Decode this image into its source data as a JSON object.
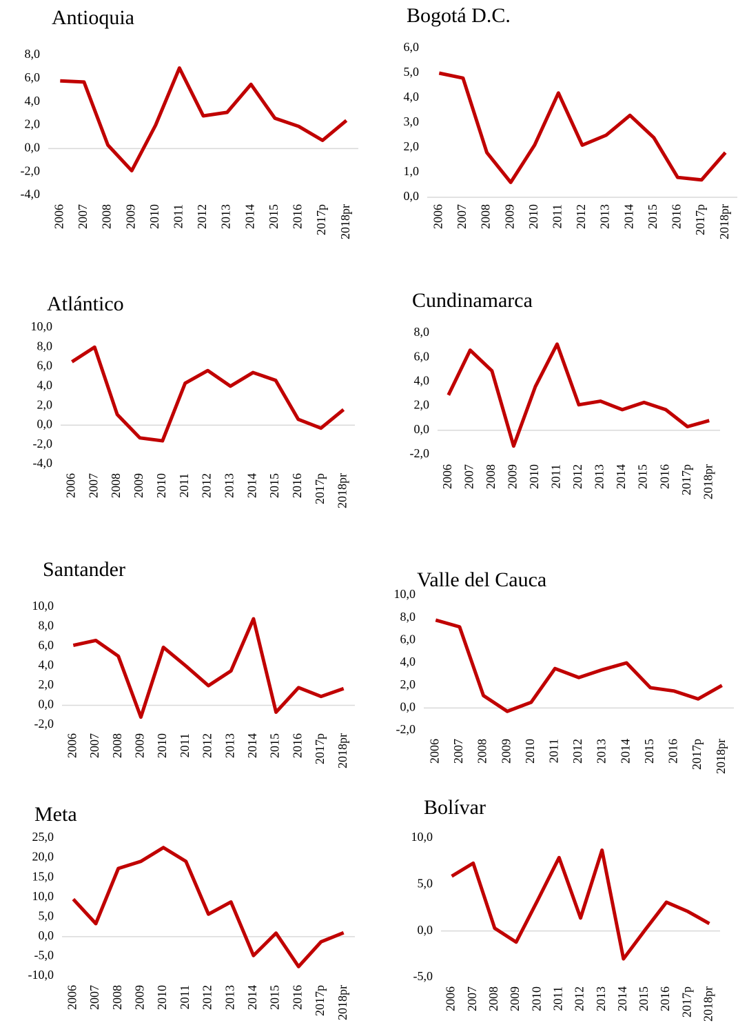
{
  "chart_data": [
    {
      "type": "line",
      "title": "Antioquia",
      "categories": [
        "2006",
        "2007",
        "2008",
        "2009",
        "2010",
        "2011",
        "2012",
        "2013",
        "2014",
        "2015",
        "2016",
        "2017p",
        "2018pr"
      ],
      "series": [
        {
          "color": "#c00000",
          "values": [
            5.8,
            5.7,
            0.3,
            -1.9,
            2.0,
            6.9,
            2.8,
            3.1,
            5.5,
            2.6,
            1.9,
            0.7,
            2.4
          ]
        }
      ],
      "ylim": [
        -4,
        8
      ],
      "yticks": [
        {
          "value": -4,
          "label": "-4,0"
        },
        {
          "value": -2,
          "label": "-2,0"
        },
        {
          "value": 0,
          "label": "0,0"
        },
        {
          "value": 2,
          "label": "2,0"
        },
        {
          "value": 4,
          "label": "4,0"
        },
        {
          "value": 6,
          "label": "6,0"
        },
        {
          "value": 8,
          "label": "8,0"
        }
      ]
    },
    {
      "type": "line",
      "title": "Bogotá D.C.",
      "categories": [
        "2006",
        "2007",
        "2008",
        "2009",
        "2010",
        "2011",
        "2012",
        "2013",
        "2014",
        "2015",
        "2016",
        "2017p",
        "2018pr"
      ],
      "series": [
        {
          "color": "#c00000",
          "values": [
            5.0,
            4.8,
            1.8,
            0.6,
            2.1,
            4.2,
            2.1,
            2.5,
            3.3,
            2.4,
            0.8,
            0.7,
            1.8
          ]
        }
      ],
      "ylim": [
        0,
        6
      ],
      "yticks": [
        {
          "value": 0,
          "label": "0,0"
        },
        {
          "value": 1,
          "label": "1,0"
        },
        {
          "value": 2,
          "label": "2,0"
        },
        {
          "value": 3,
          "label": "3,0"
        },
        {
          "value": 4,
          "label": "4,0"
        },
        {
          "value": 5,
          "label": "5,0"
        },
        {
          "value": 6,
          "label": "6,0"
        }
      ]
    },
    {
      "type": "line",
      "title": "Atlántico",
      "categories": [
        "2006",
        "2007",
        "2008",
        "2009",
        "2010",
        "2011",
        "2012",
        "2013",
        "2014",
        "2015",
        "2016",
        "2017p",
        "2018pr"
      ],
      "series": [
        {
          "color": "#c00000",
          "values": [
            6.5,
            8.0,
            1.1,
            -1.3,
            -1.6,
            4.3,
            5.6,
            4.0,
            5.4,
            4.6,
            0.6,
            -0.3,
            1.6
          ]
        }
      ],
      "ylim": [
        -4,
        10
      ],
      "yticks": [
        {
          "value": -4,
          "label": "-4,0"
        },
        {
          "value": -2,
          "label": "-2,0"
        },
        {
          "value": 0,
          "label": "0,0"
        },
        {
          "value": 2,
          "label": "2,0"
        },
        {
          "value": 4,
          "label": "4,0"
        },
        {
          "value": 6,
          "label": "6,0"
        },
        {
          "value": 8,
          "label": "8,0"
        },
        {
          "value": 10,
          "label": "10,0"
        }
      ]
    },
    {
      "type": "line",
      "title": "Cundinamarca",
      "categories": [
        "2006",
        "2007",
        "2008",
        "2009",
        "2010",
        "2011",
        "2012",
        "2013",
        "2014",
        "2015",
        "2016",
        "2017p",
        "2018pr"
      ],
      "series": [
        {
          "color": "#c00000",
          "values": [
            2.9,
            6.6,
            4.9,
            -1.3,
            3.6,
            7.1,
            2.1,
            2.4,
            1.7,
            2.3,
            1.7,
            0.3,
            0.8
          ]
        }
      ],
      "ylim": [
        -2,
        8
      ],
      "yticks": [
        {
          "value": -2,
          "label": "-2,0"
        },
        {
          "value": 0,
          "label": "0,0"
        },
        {
          "value": 2,
          "label": "2,0"
        },
        {
          "value": 4,
          "label": "4,0"
        },
        {
          "value": 6,
          "label": "6,0"
        },
        {
          "value": 8,
          "label": "8,0"
        }
      ]
    },
    {
      "type": "line",
      "title": "Santander",
      "categories": [
        "2006",
        "2007",
        "2008",
        "2009",
        "2010",
        "2011",
        "2012",
        "2013",
        "2014",
        "2015",
        "2016",
        "2017p",
        "2018pr"
      ],
      "series": [
        {
          "color": "#c00000",
          "values": [
            6.1,
            6.6,
            5.0,
            -1.2,
            5.9,
            4.0,
            2.0,
            3.5,
            8.8,
            -0.7,
            1.8,
            0.9,
            1.7
          ]
        }
      ],
      "ylim": [
        -2,
        10
      ],
      "yticks": [
        {
          "value": -2,
          "label": "-2,0"
        },
        {
          "value": 0,
          "label": "0,0"
        },
        {
          "value": 2,
          "label": "2,0"
        },
        {
          "value": 4,
          "label": "4,0"
        },
        {
          "value": 6,
          "label": "6,0"
        },
        {
          "value": 8,
          "label": "8,0"
        },
        {
          "value": 10,
          "label": "10,0"
        }
      ]
    },
    {
      "type": "line",
      "title": "Valle del Cauca",
      "categories": [
        "2006",
        "2007",
        "2008",
        "2009",
        "2010",
        "2011",
        "2012",
        "2013",
        "2014",
        "2015",
        "2016",
        "2017p",
        "2018pr"
      ],
      "series": [
        {
          "color": "#c00000",
          "values": [
            7.8,
            7.2,
            1.1,
            -0.3,
            0.5,
            3.5,
            2.7,
            3.4,
            4.0,
            1.8,
            1.5,
            0.8,
            2.0
          ]
        }
      ],
      "ylim": [
        -2,
        10
      ],
      "yticks": [
        {
          "value": -2,
          "label": "-2,0"
        },
        {
          "value": 0,
          "label": "0,0"
        },
        {
          "value": 2,
          "label": "2,0"
        },
        {
          "value": 4,
          "label": "4,0"
        },
        {
          "value": 6,
          "label": "6,0"
        },
        {
          "value": 8,
          "label": "8,0"
        },
        {
          "value": 10,
          "label": "10,0"
        }
      ]
    },
    {
      "type": "line",
      "title": "Meta",
      "categories": [
        "2006",
        "2007",
        "2008",
        "2009",
        "2010",
        "2011",
        "2012",
        "2013",
        "2014",
        "2015",
        "2016",
        "2017p",
        "2018pr"
      ],
      "series": [
        {
          "color": "#c00000",
          "values": [
            9.5,
            3.3,
            17.3,
            19.1,
            22.6,
            19.1,
            5.7,
            8.8,
            -4.8,
            0.9,
            -7.6,
            -1.3,
            1.0
          ]
        }
      ],
      "ylim": [
        -10,
        25
      ],
      "yticks": [
        {
          "value": -10,
          "label": "-10,0"
        },
        {
          "value": -5,
          "label": "-5,0"
        },
        {
          "value": 0,
          "label": "0,0"
        },
        {
          "value": 5,
          "label": "5,0"
        },
        {
          "value": 10,
          "label": "10,0"
        },
        {
          "value": 15,
          "label": "15,0"
        },
        {
          "value": 20,
          "label": "20,0"
        },
        {
          "value": 25,
          "label": "25,0"
        }
      ]
    },
    {
      "type": "line",
      "title": "Bolívar",
      "categories": [
        "2006",
        "2007",
        "2008",
        "2009",
        "2010",
        "2011",
        "2012",
        "2013",
        "2014",
        "2015",
        "2016",
        "2017p",
        "2018pr"
      ],
      "series": [
        {
          "color": "#c00000",
          "values": [
            5.9,
            7.3,
            0.3,
            -1.2,
            3.3,
            7.9,
            1.4,
            8.7,
            -3.0,
            0.1,
            3.1,
            2.1,
            0.8
          ]
        }
      ],
      "ylim": [
        -5,
        10
      ],
      "yticks": [
        {
          "value": -5,
          "label": "-5,0"
        },
        {
          "value": 0,
          "label": "0,0"
        },
        {
          "value": 5,
          "label": "5,0"
        },
        {
          "value": 10,
          "label": "10,0"
        }
      ]
    }
  ]
}
